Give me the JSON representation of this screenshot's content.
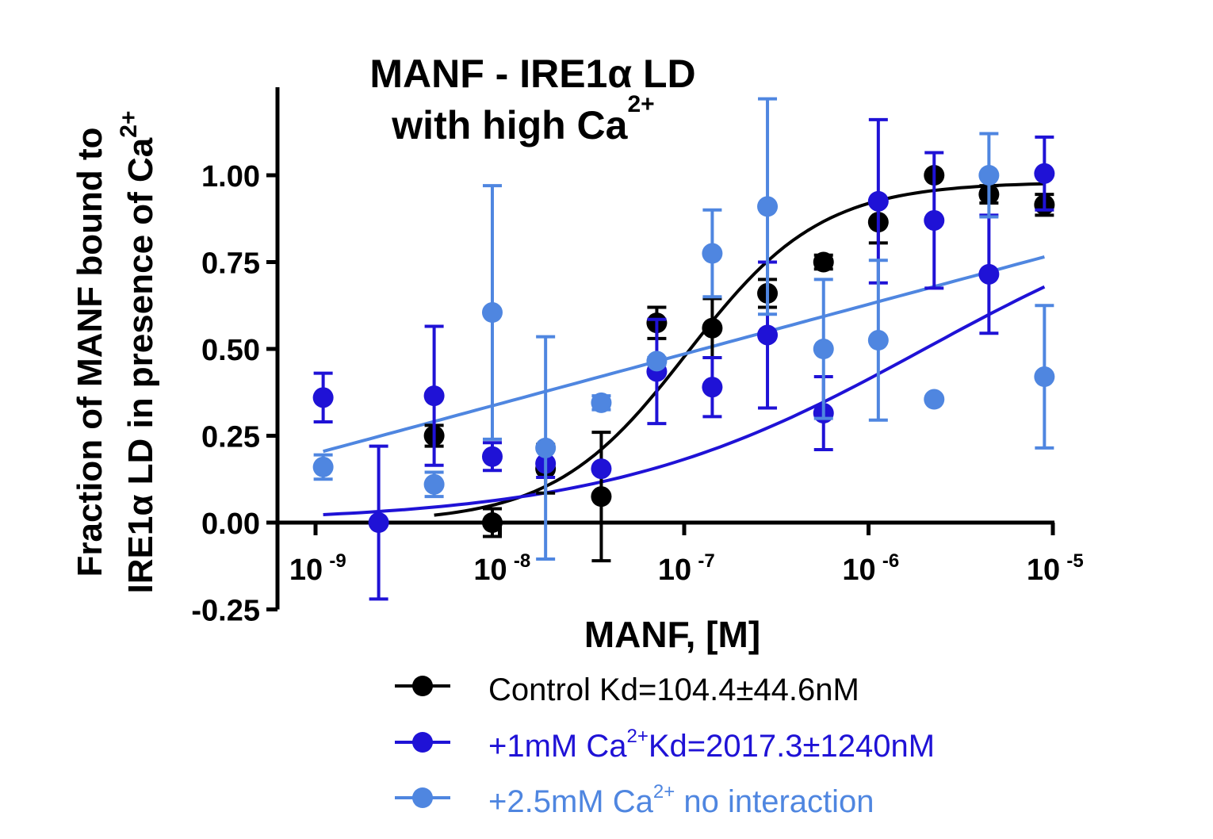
{
  "chart_data": {
    "type": "scatter",
    "title_line1": "MANF - IRE1α LD",
    "title_line2_base": "with high Ca",
    "title_line2_sup": "2+",
    "xlabel": "MANF, [M]",
    "ylabel_line1": "Fraction of MANF bound to",
    "ylabel_line2_base": "IRE1α LD in presence of Ca",
    "ylabel_line2_sup": "2+",
    "x_scale": "log",
    "xlim": [
      7.5e-10,
      1e-05
    ],
    "ylim": [
      -0.25,
      1.25
    ],
    "y_ticks": [
      -0.25,
      0.0,
      0.25,
      0.5,
      0.75,
      1.0
    ],
    "y_tick_labels": [
      "-0.25",
      "0.00",
      "0.25",
      "0.50",
      "0.75",
      "1.00"
    ],
    "x_ticks": [
      {
        "value": 1e-09,
        "base": "10",
        "exp": "-9"
      },
      {
        "value": 1e-08,
        "base": "10",
        "exp": "-8"
      },
      {
        "value": 1e-07,
        "base": "10",
        "exp": "-7"
      },
      {
        "value": 1e-06,
        "base": "10",
        "exp": "-6"
      },
      {
        "value": 1e-05,
        "base": "10",
        "exp": "-5"
      }
    ],
    "series": [
      {
        "name": "Control",
        "color": "#000000",
        "legend_text": "Control Kd=104.4±44.6nM",
        "legend_sup": "",
        "legend_after": "",
        "kd": 1.044e-07,
        "fit": {
          "bottom": 0.0,
          "top": 0.98,
          "hill": 1.2,
          "x_from": 4.4e-09,
          "x_to": 9e-06
        },
        "points": [
          {
            "x": 4.4e-09,
            "y": 0.25,
            "err": 0.03
          },
          {
            "x": 9.1e-09,
            "y": 0.0,
            "err": 0.04
          },
          {
            "x": 1.77e-08,
            "y": 0.155,
            "err": 0.07
          },
          {
            "x": 3.55e-08,
            "y": 0.075,
            "err": 0.185
          },
          {
            "x": 7.1e-08,
            "y": 0.575,
            "err": 0.045
          },
          {
            "x": 1.42e-07,
            "y": 0.56,
            "err": 0.085
          },
          {
            "x": 2.83e-07,
            "y": 0.66,
            "err": 0.04
          },
          {
            "x": 5.7e-07,
            "y": 0.75,
            "err": 0.02
          },
          {
            "x": 1.13e-06,
            "y": 0.865,
            "err": 0.06
          },
          {
            "x": 2.27e-06,
            "y": 1.0,
            "err": 0.0
          },
          {
            "x": 4.5e-06,
            "y": 0.945,
            "err": 0.025
          },
          {
            "x": 9e-06,
            "y": 0.915,
            "err": 0.03
          }
        ]
      },
      {
        "name": "+1mM Ca2+",
        "color": "#1f12d6",
        "legend_text": "+1mM Ca",
        "legend_sup": "2+",
        "legend_after": "Kd=2017.3±1240nM",
        "kd": 2.0173e-06,
        "fit": {
          "bottom": 0.0,
          "top": 1.0,
          "hill": 0.5,
          "x_from": 1.1e-09,
          "x_to": 9e-06
        },
        "points": [
          {
            "x": 1.1e-09,
            "y": 0.36,
            "err": 0.07
          },
          {
            "x": 2.2e-09,
            "y": 0.0,
            "err": 0.22
          },
          {
            "x": 4.4e-09,
            "y": 0.365,
            "err": 0.2
          },
          {
            "x": 9.1e-09,
            "y": 0.19,
            "err": 0.04
          },
          {
            "x": 1.77e-08,
            "y": 0.17,
            "err": 0.04
          },
          {
            "x": 3.55e-08,
            "y": 0.155,
            "err": 0.0
          },
          {
            "x": 7.1e-08,
            "y": 0.435,
            "err": 0.15
          },
          {
            "x": 1.42e-07,
            "y": 0.39,
            "err": 0.085
          },
          {
            "x": 2.83e-07,
            "y": 0.54,
            "err": 0.21
          },
          {
            "x": 5.7e-07,
            "y": 0.315,
            "err": 0.105
          },
          {
            "x": 1.13e-06,
            "y": 0.925,
            "err": 0.235
          },
          {
            "x": 2.27e-06,
            "y": 0.87,
            "err": 0.195
          },
          {
            "x": 4.5e-06,
            "y": 0.715,
            "err": 0.17
          },
          {
            "x": 9e-06,
            "y": 1.005,
            "err": 0.105
          }
        ]
      },
      {
        "name": "+2.5mM Ca2+",
        "color": "#4f86e0",
        "legend_text": "+2.5mM Ca",
        "legend_sup": "2+",
        "legend_after": " no interaction",
        "kd": null,
        "fit": {
          "type": "loglinear",
          "x_from": 1.1e-09,
          "x_to": 9e-06,
          "y_from": 0.205,
          "y_to": 0.765
        },
        "points": [
          {
            "x": 1.1e-09,
            "y": 0.16,
            "err": 0.035
          },
          {
            "x": 4.4e-09,
            "y": 0.11,
            "err": 0.035
          },
          {
            "x": 9.1e-09,
            "y": 0.605,
            "err": 0.365
          },
          {
            "x": 1.77e-08,
            "y": 0.215,
            "err": 0.32
          },
          {
            "x": 3.55e-08,
            "y": 0.345,
            "err": 0.02
          },
          {
            "x": 7.1e-08,
            "y": 0.465,
            "err": 0.01
          },
          {
            "x": 1.42e-07,
            "y": 0.775,
            "err": 0.125
          },
          {
            "x": 2.83e-07,
            "y": 0.91,
            "err": 0.31
          },
          {
            "x": 5.7e-07,
            "y": 0.5,
            "err": 0.2
          },
          {
            "x": 1.13e-06,
            "y": 0.525,
            "err": 0.23
          },
          {
            "x": 2.27e-06,
            "y": 0.355,
            "err": 0.0
          },
          {
            "x": 4.5e-06,
            "y": 1.0,
            "err": 0.12
          },
          {
            "x": 9e-06,
            "y": 0.42,
            "err": 0.205
          }
        ]
      }
    ]
  }
}
